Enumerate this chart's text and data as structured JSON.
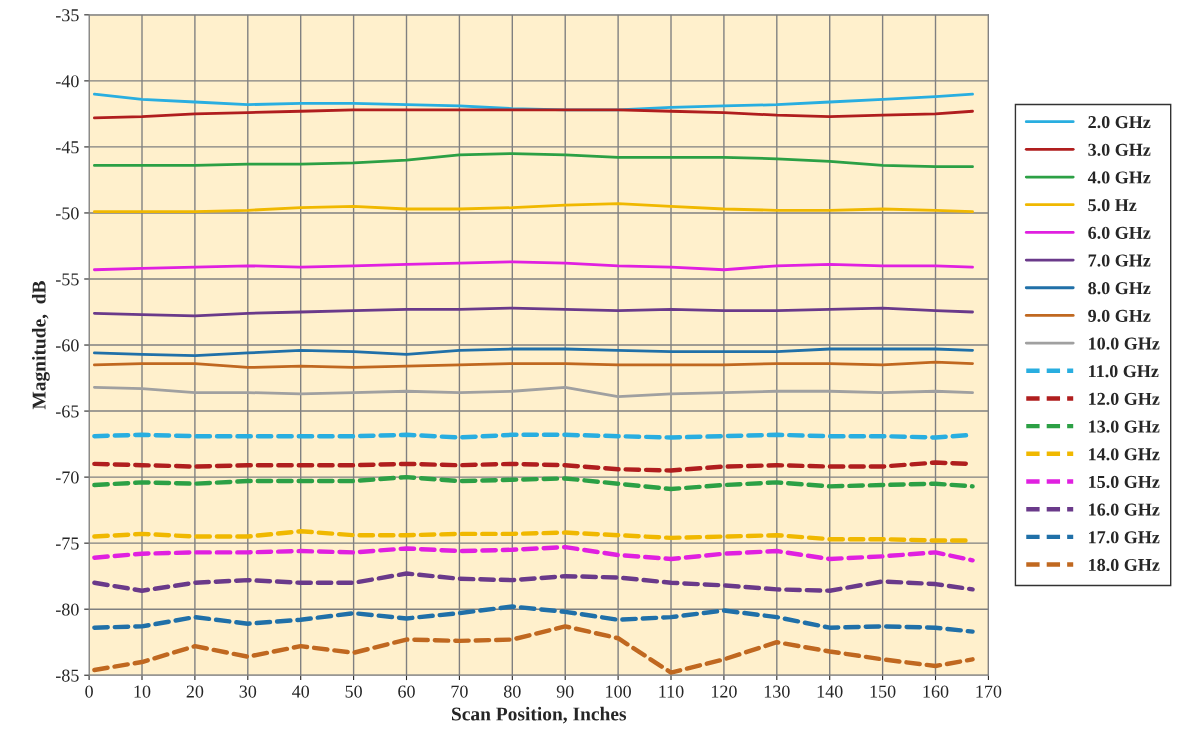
{
  "chart_data": {
    "type": "line",
    "xlabel": "Scan Position, Inches",
    "ylabel": "Magnitude,  dB",
    "x": [
      1,
      10,
      20,
      30,
      40,
      50,
      60,
      70,
      80,
      90,
      100,
      110,
      120,
      130,
      140,
      150,
      160,
      167
    ],
    "xlim": [
      0,
      170
    ],
    "xticks": [
      0,
      10,
      20,
      30,
      40,
      50,
      60,
      70,
      80,
      90,
      100,
      110,
      120,
      130,
      140,
      150,
      160,
      170
    ],
    "ylim": [
      -85,
      -35
    ],
    "yticks": [
      -85,
      -80,
      -75,
      -70,
      -65,
      -60,
      -55,
      -50,
      -45,
      -40,
      -35
    ],
    "grid": true,
    "legend": "right",
    "marker": "none",
    "series": [
      {
        "name": "2.0 GHz",
        "color": "#29aee0",
        "line_style": "solid",
        "values": [
          -41.0,
          -41.4,
          -41.6,
          -41.8,
          -41.7,
          -41.7,
          -41.8,
          -41.9,
          -42.1,
          -42.2,
          -42.2,
          -42.0,
          -41.9,
          -41.8,
          -41.6,
          -41.4,
          -41.2,
          -41.0
        ]
      },
      {
        "name": "3.0 GHz",
        "color": "#b01e1e",
        "line_style": "solid",
        "values": [
          -42.8,
          -42.7,
          -42.5,
          -42.4,
          -42.3,
          -42.2,
          -42.2,
          -42.2,
          -42.2,
          -42.2,
          -42.2,
          -42.3,
          -42.4,
          -42.6,
          -42.7,
          -42.6,
          -42.5,
          -42.3
        ]
      },
      {
        "name": "4.0 GHz",
        "color": "#2ca045",
        "line_style": "solid",
        "values": [
          -46.4,
          -46.4,
          -46.4,
          -46.3,
          -46.3,
          -46.2,
          -46.0,
          -45.6,
          -45.5,
          -45.6,
          -45.8,
          -45.8,
          -45.8,
          -45.9,
          -46.1,
          -46.4,
          -46.5,
          -46.5
        ]
      },
      {
        "name": "5.0 Hz",
        "color": "#f0b800",
        "line_style": "solid",
        "values": [
          -49.9,
          -49.9,
          -49.9,
          -49.8,
          -49.6,
          -49.5,
          -49.7,
          -49.7,
          -49.6,
          -49.4,
          -49.3,
          -49.5,
          -49.7,
          -49.8,
          -49.8,
          -49.7,
          -49.8,
          -49.9
        ]
      },
      {
        "name": "6.0 GHz",
        "color": "#e020e0",
        "line_style": "solid",
        "values": [
          -54.3,
          -54.2,
          -54.1,
          -54.0,
          -54.1,
          -54.0,
          -53.9,
          -53.8,
          -53.7,
          -53.8,
          -54.0,
          -54.1,
          -54.3,
          -54.0,
          -53.9,
          -54.0,
          -54.0,
          -54.1
        ]
      },
      {
        "name": "7.0 GHz",
        "color": "#6a3a8a",
        "line_style": "solid",
        "values": [
          -57.6,
          -57.7,
          -57.8,
          -57.6,
          -57.5,
          -57.4,
          -57.3,
          -57.3,
          -57.2,
          -57.3,
          -57.4,
          -57.3,
          -57.4,
          -57.4,
          -57.3,
          -57.2,
          -57.4,
          -57.5
        ]
      },
      {
        "name": "8.0 GHz",
        "color": "#2070a8",
        "line_style": "solid",
        "values": [
          -60.6,
          -60.7,
          -60.8,
          -60.6,
          -60.4,
          -60.5,
          -60.7,
          -60.4,
          -60.3,
          -60.3,
          -60.4,
          -60.5,
          -60.5,
          -60.5,
          -60.3,
          -60.3,
          -60.3,
          -60.4
        ]
      },
      {
        "name": "9.0 GHz",
        "color": "#c06820",
        "line_style": "solid",
        "values": [
          -61.5,
          -61.4,
          -61.4,
          -61.7,
          -61.6,
          -61.7,
          -61.6,
          -61.5,
          -61.4,
          -61.4,
          -61.5,
          -61.5,
          -61.5,
          -61.4,
          -61.4,
          -61.5,
          -61.3,
          -61.4
        ]
      },
      {
        "name": "10.0 GHz",
        "color": "#a0a0a0",
        "line_style": "solid",
        "values": [
          -63.2,
          -63.3,
          -63.6,
          -63.6,
          -63.7,
          -63.6,
          -63.5,
          -63.6,
          -63.5,
          -63.2,
          -63.9,
          -63.7,
          -63.6,
          -63.5,
          -63.5,
          -63.6,
          -63.5,
          -63.6
        ]
      },
      {
        "name": "11.0 GHz",
        "color": "#29aee0",
        "line_style": "dashed",
        "values": [
          -66.9,
          -66.8,
          -66.9,
          -66.9,
          -66.9,
          -66.9,
          -66.8,
          -67.0,
          -66.8,
          -66.8,
          -66.9,
          -67.0,
          -66.9,
          -66.8,
          -66.9,
          -66.9,
          -67.0,
          -66.8
        ]
      },
      {
        "name": "12.0 GHz",
        "color": "#b01e1e",
        "line_style": "dashed",
        "values": [
          -69.0,
          -69.1,
          -69.2,
          -69.1,
          -69.1,
          -69.1,
          -69.0,
          -69.1,
          -69.0,
          -69.1,
          -69.4,
          -69.5,
          -69.2,
          -69.1,
          -69.2,
          -69.2,
          -68.9,
          -69.0
        ]
      },
      {
        "name": "13.0 GHz",
        "color": "#2ca045",
        "line_style": "dashed",
        "values": [
          -70.6,
          -70.4,
          -70.5,
          -70.3,
          -70.3,
          -70.3,
          -70.0,
          -70.3,
          -70.2,
          -70.1,
          -70.5,
          -70.9,
          -70.6,
          -70.4,
          -70.7,
          -70.6,
          -70.5,
          -70.7
        ]
      },
      {
        "name": "14.0 GHz",
        "color": "#f0b800",
        "line_style": "dashed",
        "values": [
          -74.5,
          -74.3,
          -74.5,
          -74.5,
          -74.1,
          -74.4,
          -74.4,
          -74.3,
          -74.3,
          -74.2,
          -74.4,
          -74.6,
          -74.5,
          -74.4,
          -74.7,
          -74.7,
          -74.8,
          -74.8
        ]
      },
      {
        "name": "15.0 GHz",
        "color": "#e020e0",
        "line_style": "dashed",
        "values": [
          -76.1,
          -75.8,
          -75.7,
          -75.7,
          -75.6,
          -75.7,
          -75.4,
          -75.6,
          -75.5,
          -75.3,
          -75.9,
          -76.2,
          -75.8,
          -75.6,
          -76.2,
          -76.0,
          -75.7,
          -76.3
        ]
      },
      {
        "name": "16.0 GHz",
        "color": "#6a3a8a",
        "line_style": "dashed",
        "values": [
          -78.0,
          -78.6,
          -78.0,
          -77.8,
          -78.0,
          -78.0,
          -77.3,
          -77.7,
          -77.8,
          -77.5,
          -77.6,
          -78.0,
          -78.2,
          -78.5,
          -78.6,
          -77.9,
          -78.1,
          -78.5
        ]
      },
      {
        "name": "17.0 GHz",
        "color": "#2070a8",
        "line_style": "dashed",
        "values": [
          -81.4,
          -81.3,
          -80.6,
          -81.1,
          -80.8,
          -80.3,
          -80.7,
          -80.3,
          -79.8,
          -80.2,
          -80.8,
          -80.6,
          -80.1,
          -80.6,
          -81.4,
          -81.3,
          -81.4,
          -81.7
        ]
      },
      {
        "name": "18.0 GHz",
        "color": "#c06820",
        "line_style": "dashed",
        "values": [
          -84.6,
          -84.0,
          -82.8,
          -83.6,
          -82.8,
          -83.3,
          -82.3,
          -82.4,
          -82.3,
          -81.3,
          -82.2,
          -84.8,
          -83.8,
          -82.5,
          -83.2,
          -83.8,
          -84.3,
          -83.8
        ]
      }
    ]
  }
}
